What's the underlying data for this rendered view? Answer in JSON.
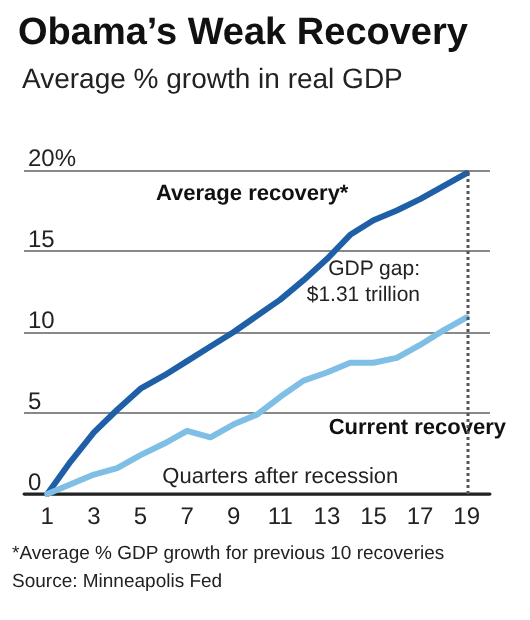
{
  "chart_data": {
    "type": "line",
    "title": "Obama’s Weak Recovery",
    "subtitle": "Average % growth in real GDP",
    "xlabel": "Quarters after recession",
    "x": [
      1,
      2,
      3,
      4,
      5,
      6,
      7,
      8,
      9,
      10,
      11,
      12,
      13,
      14,
      15,
      16,
      17,
      18,
      19
    ],
    "series": [
      {
        "name": "Average recovery*",
        "color": "#1f5fa8",
        "values": [
          0,
          2,
          3.8,
          5.2,
          6.5,
          7.3,
          8.2,
          9.1,
          10,
          11,
          12,
          13.2,
          14.5,
          16,
          16.9,
          17.5,
          18.2,
          19,
          19.8
        ]
      },
      {
        "name": "Current recovery",
        "color": "#7fbfe6",
        "values": [
          0,
          0.6,
          1.2,
          1.6,
          2.4,
          3.1,
          3.9,
          3.5,
          4.3,
          4.9,
          6,
          7,
          7.5,
          8.1,
          8.1,
          8.4,
          9.2,
          10.1,
          10.9
        ]
      }
    ],
    "xlim": [
      0,
      20
    ],
    "xticks": [
      1,
      3,
      5,
      7,
      9,
      11,
      13,
      15,
      17,
      19
    ],
    "ylim": [
      0,
      20
    ],
    "yticks": [
      0,
      5,
      10,
      15,
      {
        "value": 20,
        "label": "20%"
      }
    ],
    "grid": "y",
    "legend": false,
    "marker": "none",
    "line_style": "solid",
    "ref_lines": [
      {
        "axis": "x",
        "value": 19,
        "color": "#555555",
        "line_style": "dotted"
      }
    ],
    "annotations": [
      "GDP gap:\n$1.31 trillion",
      "*Average % GDP growth for previous 10 recoveries",
      "Source: Minneapolis Fed"
    ]
  }
}
